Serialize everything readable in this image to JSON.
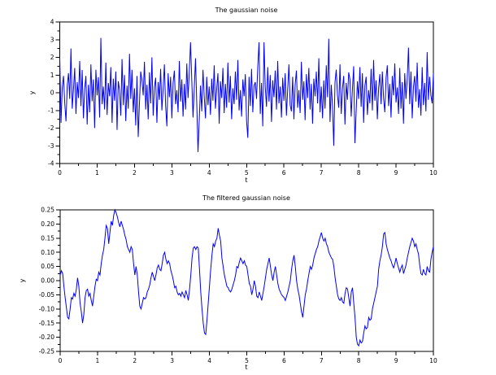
{
  "window": {
    "background": "#ffffff"
  },
  "chart_data": [
    {
      "type": "line",
      "title": "The gaussian noise",
      "xlabel": "t",
      "ylabel": "y",
      "xlim": [
        0,
        10
      ],
      "ylim": [
        -4,
        4
      ],
      "xticks": [
        0,
        1,
        2,
        3,
        4,
        5,
        6,
        7,
        8,
        9,
        10
      ],
      "yticks": [
        -4,
        -3,
        -2,
        -1,
        0,
        1,
        2,
        3,
        4
      ],
      "xtick_decimals": 0,
      "ytick_decimals": 0,
      "subticks": 1,
      "grid": false,
      "legend": null,
      "line_color": "#0000ff",
      "axis_color": "#000000",
      "y_scale": 0.01,
      "y_csv": "200 -170 30 95 -60 -162 40 110 -35 250 -90 18 140 -120 60 -30 180 -75 128 -145 22 95 -180 45 -110 160 -48 75 -200 130 -15 88 -140 310 -65 35 -95 170 -125 55 -20 145 -170 80 -45 120 -210 65 15 -130 190 -70 100 -160 40 -90 220 -35 130 -110 25 -185 95 -250 -55 120 70 -15 175 -95 45 -150 115 -60 200 -130 30 85 -170 60 -40 135 -100 20 160 -75 -190 110 -25 90 -145 55 125 -65 15 -110 180 -50 75 -135 50 -95 165 -30 115 285 70 -140 25 195 -60 -335 -155 40 -105 130 -20 -145 90 -70 35 -125 80 -45 155 -90 20 110 -175 65 -30 140 -115 50 -85 170 -55 95 -150 25 -65 120 -40 185 -100 15 -135 75 -20 105 -160 -255 90 -75 135 -110 40 60 -35 150 285 -120 55 -190 285 30 -80 145 -50 100 -165 70 -25 125 -95 180 -60 35 -140 85 -45 110 -130 20 160 -70 -105 90 -150 45 125 -85 15 -115 175 -40 65 -155 105 -30 140 -95 50 -175 80 -20 120 -60 195 -110 35 -145 70 -90 155 -25 305 -165 45 -75 -300 60 130 -15 -85 160 -120 25 95 -180 55 -40 115 75 -135 20 150 -285 -105 65 -35 145 -80 110 -170 40 90 -125 15 -60 135 -100 185 -45 70 -150 25 105 -65 120 -30 -110 85 155 -75 50 -140 95 -15 165 -55 30 -120 140 -90 60 -175 110 -35 80 255 -65 120 -145 35 95 -50 170 -85 20 -130 145 -70 55 -105 230 -40 90 -15 -60 110"
    },
    {
      "type": "line",
      "title": "The filtered gaussian noise",
      "xlabel": "t",
      "ylabel": "y",
      "xlim": [
        0,
        10
      ],
      "ylim": [
        -0.25,
        0.25
      ],
      "xticks": [
        0,
        1,
        2,
        3,
        4,
        5,
        6,
        7,
        8,
        9,
        10
      ],
      "yticks": [
        -0.25,
        -0.2,
        -0.15,
        -0.1,
        -0.05,
        0,
        0.05,
        0.1,
        0.15,
        0.2,
        0.25
      ],
      "xtick_decimals": 0,
      "ytick_decimals": 2,
      "subticks": 1,
      "grid": false,
      "legend": null,
      "line_color": "#0000ff",
      "axis_color": "#000000",
      "y_scale": 0.001,
      "y_csv": "20 35 25 -20 -60 -95 -130 -135 -100 -60 -65 -45 -55 -30 10 -20 -80 -110 -150 -120 -60 -35 -30 -55 -45 -70 -90 -55 -20 5 0 30 20 60 90 110 150 195 185 130 170 210 195 230 250 240 225 205 190 210 195 180 160 145 120 110 100 120 110 60 20 50 20 -40 -90 -100 -80 -60 -65 -60 -40 -30 -15 10 30 15 0 20 45 55 40 35 60 90 100 75 60 70 60 35 20 0 -25 -20 -40 -50 -45 -55 -40 -50 -60 -35 -50 -70 -30 20 80 115 120 110 120 115 40 -40 -100 -150 -185 -190 -140 -80 -20 40 90 130 120 140 150 185 160 140 80 50 20 0 -20 -25 -35 -40 -30 -15 0 20 50 45 65 80 70 60 70 55 50 20 -10 -20 -50 -30 0 -20 -55 -60 -40 -55 -70 -45 -20 10 40 60 80 50 20 0 30 50 20 -10 -30 -40 -50 -55 -60 -70 -55 -40 -20 0 40 70 90 50 0 -30 -50 -80 -110 -130 -90 -50 -30 0 25 50 40 55 80 95 110 120 140 155 170 150 140 150 130 120 100 90 80 75 50 10 -20 -50 -65 -70 -60 -75 -80 -45 -25 -30 -60 -90 -40 -25 -80 -130 -200 -225 -230 -210 -220 -215 -185 -160 -170 -165 -130 -140 -135 -100 -80 -60 -40 -20 40 70 90 120 165 170 130 110 95 80 70 55 45 60 80 60 45 30 45 55 25 40 55 80 100 120 135 150 140 120 130 110 95 55 25 20 40 25 20 50 35 30 75 100 120"
    }
  ]
}
